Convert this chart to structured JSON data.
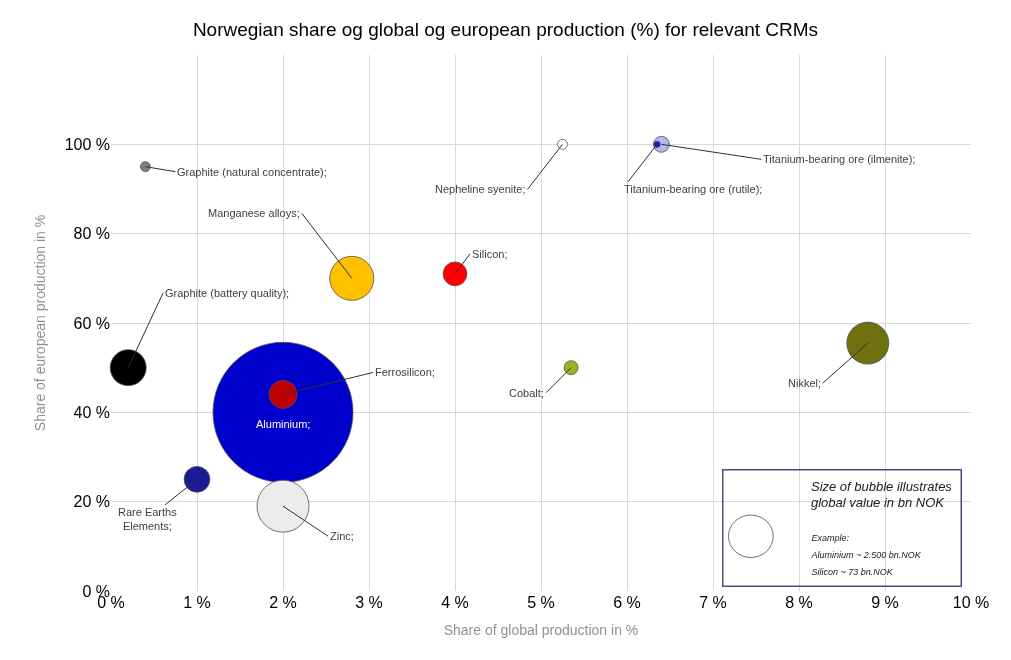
{
  "chart_data": {
    "type": "bubble",
    "title": "Norwegian share og global og european production (%) for relevant CRMs",
    "xlabel": "Share of global production in %",
    "ylabel": "Share of european production in %",
    "x": [
      0.4,
      2.8,
      4.0,
      0.2,
      2.0,
      2.0,
      1.0,
      2.0,
      5.25,
      6.4,
      6.35,
      5.35,
      8.8
    ],
    "values": [
      95,
      70,
      71,
      50,
      40,
      44,
      25,
      19,
      100,
      100,
      100,
      50,
      55.5
    ],
    "sizes": [
      0.005,
      0.099,
      0.029,
      0.066,
      1,
      0.04,
      0.034,
      0.138,
      0.005,
      0.013,
      0.002,
      0.01,
      0.09
    ],
    "colors": [
      "#808080",
      "#ffc000",
      "#ff0000",
      "#000000",
      "#0000cc",
      "#c00000",
      "#1a1a99",
      "#ececec",
      "#ffffff",
      "#b4b4f0",
      "#1a1acc",
      "#a0b020",
      "#707010"
    ],
    "xlim": [
      0,
      10
    ],
    "xticks": [
      {
        "value": 0,
        "label": "0 %"
      },
      {
        "value": 1,
        "label": "1 %"
      },
      {
        "value": 2,
        "label": "2 %"
      },
      {
        "value": 3,
        "label": "3 %"
      },
      {
        "value": 4,
        "label": "4 %"
      },
      {
        "value": 5,
        "label": "5 %"
      },
      {
        "value": 6,
        "label": "6 %"
      },
      {
        "value": 7,
        "label": "7 %"
      },
      {
        "value": 8,
        "label": "8 %"
      },
      {
        "value": 9,
        "label": "9 %"
      },
      {
        "value": 10,
        "label": "10 %"
      }
    ],
    "ylim": [
      0,
      120
    ],
    "yticks": [
      {
        "value": 0,
        "label": "0 %"
      },
      {
        "value": 20,
        "label": "20 %"
      },
      {
        "value": 40,
        "label": "40 %"
      },
      {
        "value": 60,
        "label": "60 %"
      },
      {
        "value": 80,
        "label": "80 %"
      },
      {
        "value": 100,
        "label": "100 %"
      }
    ],
    "grid": true,
    "annotations": [
      {
        "text": "Graphite (natural concentrate);",
        "x": 0.4,
        "y": 95
      },
      {
        "text": "Manganese alloys;",
        "x": 2.8,
        "y": 70
      },
      {
        "text": "Silicon;",
        "x": 4.0,
        "y": 71
      },
      {
        "text": "Graphite (battery quality);",
        "x": 0.2,
        "y": 50
      },
      {
        "text": "Aluminium;",
        "x": 2.0,
        "y": 40
      },
      {
        "text": "Ferrosilicon;",
        "x": 2.0,
        "y": 44
      },
      {
        "text": "Rare Earths\nElements;",
        "x": 1.0,
        "y": 25
      },
      {
        "text": "Zinc;",
        "x": 2.0,
        "y": 19
      },
      {
        "text": "Nepheline syenite;",
        "x": 5.25,
        "y": 100
      },
      {
        "text": "Titanium-bearing ore (ilmenite);",
        "x": 6.4,
        "y": 100
      },
      {
        "text": "Titanium-bearing ore (rutile);",
        "x": 6.35,
        "y": 100
      },
      {
        "text": "Cobalt;",
        "x": 5.35,
        "y": 50
      },
      {
        "text": "Nikkel;",
        "x": 8.8,
        "y": 55.5
      },
      "Size of bubble illustrates\nglobal value in bn NOK",
      "Example:\nAluminium ~ 2.500 bn.NOK\nSilicon ~ 73 bn.NOK"
    ]
  }
}
